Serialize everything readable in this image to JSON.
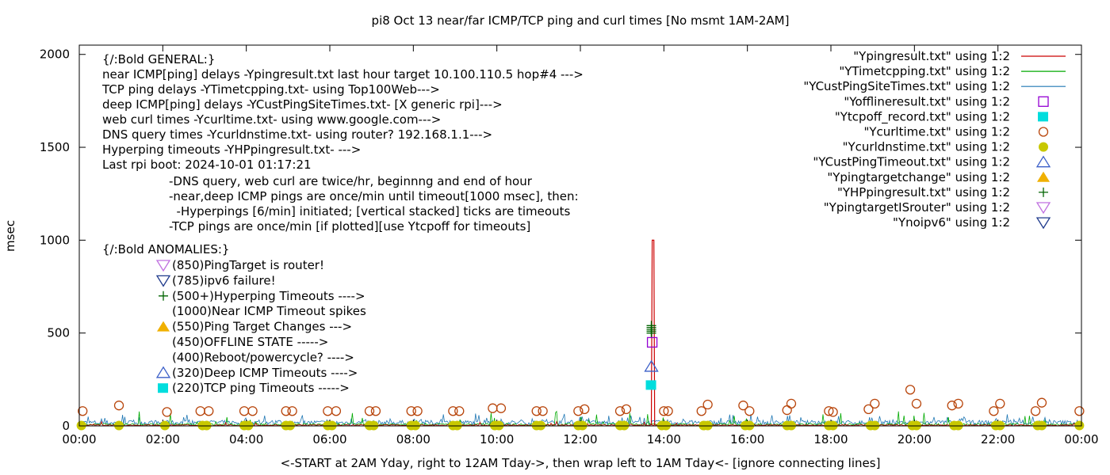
{
  "chart_data": {
    "type": "line",
    "title": "pi8 Oct 13  near/far ICMP/TCP ping and curl times [No msmt 1AM-2AM]",
    "xlabel": "<-START at 2AM Yday, right to 12AM Tday->, then wrap left to 1AM Tday<- [ignore connecting lines]",
    "ylabel": "msec",
    "xlim": [
      0,
      24
    ],
    "ylim": [
      0,
      2050
    ],
    "x_ticks": [
      "00:00",
      "02:00",
      "04:00",
      "06:00",
      "08:00",
      "10:00",
      "12:00",
      "14:00",
      "16:00",
      "18:00",
      "20:00",
      "22:00",
      "00:00"
    ],
    "y_ticks": [
      "0",
      "500",
      "1000",
      "1500",
      "2000"
    ],
    "grid": false,
    "legend_position": "top-right",
    "legend": [
      {
        "label": "\"Ypingresult.txt\" using 1:2",
        "style": "line",
        "color": "#cc0000"
      },
      {
        "label": "\"YTimetcpping.txt\" using 1:2",
        "style": "line",
        "color": "#00aa00"
      },
      {
        "label": "\"YCustPingSiteTimes.txt\" using 1:2",
        "style": "line",
        "color": "#1f77b4"
      },
      {
        "label": "\"Yofflineresult.txt\" using 1:2",
        "style": "open-square",
        "color": "#9400d3"
      },
      {
        "label": "\"Ytcpoff_record.txt\" using 1:2",
        "style": "filled-square",
        "color": "#00dddd"
      },
      {
        "label": "\"Ycurltime.txt\" using 1:2",
        "style": "open-circle",
        "color": "#b8450b"
      },
      {
        "label": "\"Ycurldnstime.txt\" using 1:2",
        "style": "filled-circle",
        "color": "#c8c800"
      },
      {
        "label": "\"YCustPingTimeout.txt\" using 1:2",
        "style": "open-triangle-up",
        "color": "#3b5fc8"
      },
      {
        "label": "\"Ypingtargetchange\" using 1:2",
        "style": "filled-triangle-up",
        "color": "#f0b000"
      },
      {
        "label": "\"YHPpingresult.txt\" using 1:2",
        "style": "plus",
        "color": "#006400"
      },
      {
        "label": "\"YpingtargetISrouter\" using 1:2",
        "style": "open-triangle-down",
        "color": "#c070e0"
      },
      {
        "label": "\"Ynoipv6\" using 1:2",
        "style": "open-triangle-down",
        "color": "#1f3a8c"
      }
    ],
    "annotations": {
      "general_lines": [
        "{/:Bold GENERAL:}",
        "near ICMP[ping] delays -Ypingresult.txt last hour target 10.100.110.5 hop#4 --->",
        "TCP ping delays -YTimetcpping.txt- using Top100Web--->",
        "deep ICMP[ping] delays -YCustPingSiteTimes.txt- [X generic rpi]--->",
        "web curl times -Ycurltime.txt- using www.google.com--->",
        "DNS query times -Ycurldnstime.txt- using router? 192.168.1.1--->",
        "Hyperping timeouts -YHPpingresult.txt- --->",
        "Last rpi boot: 2024-10-01 01:17:21"
      ],
      "note_lines": [
        "-DNS query, web curl are twice/hr, beginnng and end of hour",
        "-near,deep ICMP pings are once/min until timeout[1000 msec], then:",
        "  -Hyperpings [6/min] initiated; [vertical stacked] ticks are timeouts",
        "-TCP pings are once/min [if plotted][use Ytcpoff for timeouts]"
      ],
      "anomalies_title": "{/:Bold ANOMALIES:}",
      "anomalies": [
        {
          "text": "(850)PingTarget is router!",
          "marker": "open-triangle-down",
          "color": "#c070e0"
        },
        {
          "text": "(785)ipv6 failure!",
          "marker": "open-triangle-down",
          "color": "#1f3a8c"
        },
        {
          "text": "(500+)Hyperping Timeouts ---->",
          "marker": "plus",
          "color": "#006400"
        },
        {
          "text": "(1000)Near ICMP Timeout spikes",
          "marker": "none",
          "color": ""
        },
        {
          "text": "(550)Ping Target Changes --->",
          "marker": "filled-triangle-up",
          "color": "#f0b000"
        },
        {
          "text": "(450)OFFLINE STATE ----->",
          "marker": "none",
          "color": ""
        },
        {
          "text": "(400)Reboot/powercycle? ---->",
          "marker": "none",
          "color": ""
        },
        {
          "text": "(320)Deep ICMP Timeouts ---->",
          "marker": "open-triangle-up",
          "color": "#3b5fc8"
        },
        {
          "text": "(220)TCP ping Timeouts ----->",
          "marker": "filled-square",
          "color": "#00dddd"
        }
      ]
    },
    "series": [
      {
        "name": "\"Ycurltime.txt\" using 1:2",
        "style": "open-circle",
        "color": "#b8450b",
        "x": [
          0.08,
          0.95,
          2.1,
          2.9,
          3.1,
          3.95,
          4.15,
          4.95,
          5.1,
          5.95,
          6.15,
          6.95,
          7.1,
          7.95,
          8.1,
          8.95,
          9.1,
          9.9,
          10.1,
          10.95,
          11.1,
          11.95,
          12.1,
          12.95,
          13.1,
          14.0,
          14.1,
          14.9,
          15.05,
          15.9,
          16.05,
          16.95,
          17.05,
          17.95,
          18.05,
          18.9,
          19.05,
          19.9,
          20.05,
          20.9,
          21.05,
          21.9,
          22.05,
          22.9,
          23.05,
          23.95
        ],
        "y": [
          80,
          110,
          75,
          80,
          80,
          80,
          80,
          80,
          80,
          80,
          80,
          80,
          80,
          80,
          80,
          80,
          80,
          95,
          95,
          80,
          80,
          80,
          90,
          80,
          90,
          80,
          80,
          80,
          115,
          110,
          80,
          85,
          120,
          80,
          75,
          90,
          120,
          195,
          120,
          110,
          120,
          80,
          120,
          80,
          125,
          80
        ]
      },
      {
        "name": "\"Ycurldnstime.txt\" using 1:2",
        "style": "filled-circle",
        "color": "#c8c800",
        "x": [
          0.05,
          0.95,
          2.05,
          2.95,
          3.05,
          3.95,
          4.05,
          4.95,
          5.05,
          5.95,
          6.05,
          6.95,
          7.05,
          7.95,
          8.05,
          8.95,
          9.05,
          9.95,
          10.05,
          10.95,
          11.05,
          11.95,
          12.05,
          12.95,
          13.05,
          13.95,
          14.05,
          14.95,
          15.05,
          15.95,
          16.05,
          16.95,
          17.05,
          17.95,
          18.05,
          18.95,
          19.05,
          19.95,
          20.05,
          20.95,
          21.05,
          21.95,
          22.05,
          22.95,
          23.05,
          23.95
        ],
        "y": [
          2,
          2,
          2,
          2,
          2,
          2,
          2,
          2,
          2,
          2,
          2,
          2,
          2,
          2,
          2,
          2,
          2,
          2,
          2,
          2,
          2,
          2,
          2,
          2,
          2,
          2,
          2,
          2,
          2,
          2,
          2,
          2,
          2,
          2,
          2,
          2,
          2,
          2,
          2,
          2,
          2,
          2,
          2,
          2,
          2,
          2
        ]
      },
      {
        "name": "\"Ypingresult.txt\" using 1:2",
        "style": "line",
        "color": "#cc0000",
        "x": [
          13.7,
          13.72,
          13.74,
          13.76,
          13.78
        ],
        "y": [
          5,
          1000,
          1000,
          1000,
          5
        ]
      },
      {
        "name": "\"YHPpingresult.txt\" using 1:2",
        "style": "plus",
        "color": "#006400",
        "x": [
          13.7,
          13.7,
          13.7,
          13.7,
          13.7
        ],
        "y": [
          500,
          510,
          520,
          530,
          540
        ]
      },
      {
        "name": "\"Yofflineresult.txt\" using 1:2",
        "style": "open-square",
        "color": "#9400d3",
        "x": [
          13.72
        ],
        "y": [
          450
        ]
      },
      {
        "name": "\"YCustPingTimeout.txt\" using 1:2",
        "style": "open-triangle-up",
        "color": "#3b5fc8",
        "x": [
          13.7
        ],
        "y": [
          320
        ]
      },
      {
        "name": "\"Ytcpoff_record.txt\" using 1:2",
        "style": "filled-square",
        "color": "#00dddd",
        "x": [
          13.7
        ],
        "y": [
          220
        ]
      }
    ]
  }
}
